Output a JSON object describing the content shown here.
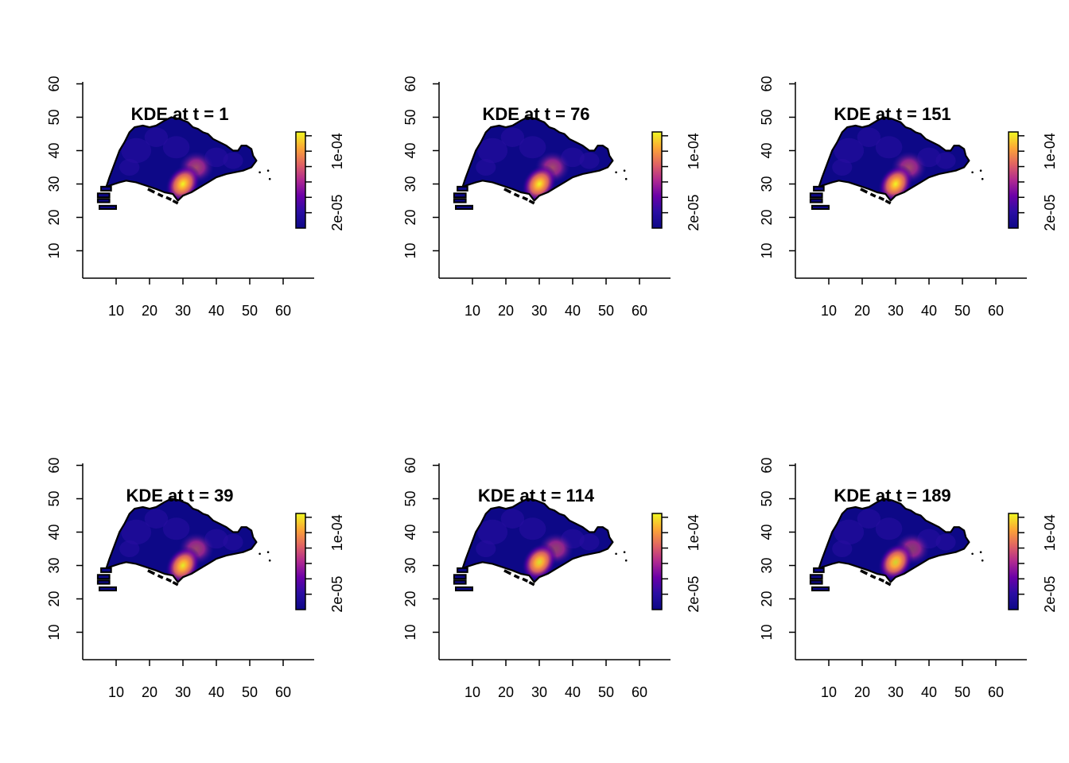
{
  "chart_data": {
    "type": "heatmap",
    "layout": "2x3 panel grid",
    "description_free": true,
    "x_ticks": [
      10,
      20,
      30,
      40,
      50,
      60
    ],
    "y_ticks": [
      10,
      20,
      30,
      40,
      50,
      60
    ],
    "xlim": [
      0,
      68
    ],
    "ylim": [
      6,
      65
    ],
    "legend_ticks": [
      {
        "value": 2e-05,
        "label": "2e-05"
      },
      {
        "value": 0.0001,
        "label": "1e-04"
      }
    ],
    "legend_range": [
      0,
      0.000125
    ],
    "legend_placement": "right of each map",
    "colormap": [
      "#0d0887",
      "#2a0ea3",
      "#6a00a8",
      "#b12a90",
      "#e16462",
      "#fca636",
      "#f0f921"
    ],
    "panels": [
      {
        "title": "KDE at t = 1",
        "t": 1,
        "peak": [
          30,
          30
        ],
        "peak_intensity": 1.0,
        "secondary": [
          34,
          35
        ],
        "secondary_intensity": 0.7
      },
      {
        "title": "KDE at t = 76",
        "t": 76,
        "peak": [
          30,
          30
        ],
        "peak_intensity": 1.0,
        "secondary": [
          34,
          35
        ],
        "secondary_intensity": 0.7
      },
      {
        "title": "KDE at t = 151",
        "t": 151,
        "peak": [
          30,
          30
        ],
        "peak_intensity": 1.0,
        "secondary": [
          34,
          35
        ],
        "secondary_intensity": 0.7
      },
      {
        "title": "KDE at t = 39",
        "t": 39,
        "peak": [
          30,
          30
        ],
        "peak_intensity": 0.95,
        "secondary": [
          34,
          35
        ],
        "secondary_intensity": 0.65
      },
      {
        "title": "KDE at t = 114",
        "t": 114,
        "peak": [
          30,
          31
        ],
        "peak_intensity": 0.9,
        "secondary": [
          35,
          35
        ],
        "secondary_intensity": 0.6
      },
      {
        "title": "KDE at t = 189",
        "t": 189,
        "peak": [
          30,
          31
        ],
        "peak_intensity": 0.85,
        "secondary": [
          35,
          35
        ],
        "secondary_intensity": 0.55
      }
    ]
  }
}
